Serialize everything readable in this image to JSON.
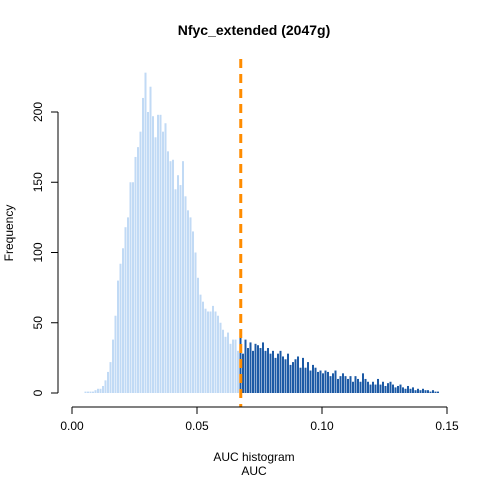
{
  "chart_data": {
    "type": "bar",
    "title": "Nfyc_extended (2047g)",
    "xlabel": "AUC histogram",
    "xsublabel": "AUC",
    "ylabel": "Frequency",
    "xlim": [
      0,
      0.15
    ],
    "ylim": [
      0,
      235
    ],
    "xticks": [
      "0.00",
      "0.05",
      "0.10",
      "0.15"
    ],
    "xtick_values": [
      0,
      0.05,
      0.1,
      0.15
    ],
    "yticks": [
      "0",
      "50",
      "100",
      "150",
      "200"
    ],
    "ytick_values": [
      0,
      50,
      100,
      150,
      200
    ],
    "grid": false,
    "threshold": 0.0675,
    "bin_start": 0.005,
    "bin_width": 0.001,
    "values": [
      1,
      1,
      1,
      1,
      2,
      3,
      3,
      5,
      9,
      15,
      22,
      38,
      55,
      80,
      92,
      103,
      118,
      125,
      150,
      150,
      168,
      175,
      186,
      210,
      228,
      200,
      218,
      197,
      182,
      198,
      198,
      186,
      192,
      172,
      165,
      166,
      145,
      155,
      148,
      165,
      140,
      130,
      125,
      115,
      100,
      82,
      70,
      65,
      60,
      58,
      58,
      62,
      58,
      55,
      50,
      45,
      40,
      43,
      35,
      38,
      38,
      30,
      40,
      28,
      38,
      32,
      36,
      30,
      35,
      34,
      32,
      36,
      30,
      32,
      28,
      30,
      25,
      28,
      30,
      26,
      24,
      28,
      20,
      22,
      24,
      26,
      18,
      25,
      18,
      22,
      16,
      20,
      18,
      15,
      16,
      14,
      16,
      15,
      12,
      14,
      16,
      10,
      12,
      14,
      12,
      10,
      12,
      8,
      12,
      10,
      8,
      14,
      10,
      8,
      6,
      8,
      6,
      10,
      6,
      8,
      5,
      7,
      8,
      6,
      4,
      5,
      6,
      4,
      3,
      5,
      3,
      4,
      2,
      3,
      2,
      3,
      2,
      2,
      1,
      2,
      1,
      1
    ],
    "colors": {
      "below": "#c1daf5",
      "above": "#1c5aa5",
      "threshold": "#ff8c00"
    }
  }
}
